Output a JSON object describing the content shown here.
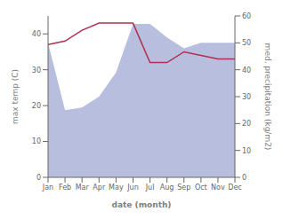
{
  "chart_data": {
    "type": "line",
    "categories": [
      "Jan",
      "Feb",
      "Mar",
      "Apr",
      "May",
      "Jun",
      "Jul",
      "Aug",
      "Sep",
      "Oct",
      "Nov",
      "Dec"
    ],
    "xlabel": "date (month)",
    "ylabel": "max temp (C)",
    "y2label": "med. precipitation (kg/m2)",
    "ylim": [
      0,
      45
    ],
    "yticks": [
      0,
      10,
      20,
      30,
      40
    ],
    "y2lim": [
      0,
      60
    ],
    "y2ticks": [
      0,
      10,
      20,
      30,
      40,
      50,
      60
    ],
    "grid": false,
    "series": [
      {
        "type": "area",
        "axis": "y2",
        "color": "#b8bede",
        "values": [
          50,
          25,
          26,
          30,
          39,
          57,
          57,
          52,
          48,
          50,
          50,
          50
        ]
      },
      {
        "type": "line",
        "color": "#b03050",
        "values": [
          37,
          38,
          41,
          43,
          43,
          43,
          32,
          32,
          35,
          34,
          33,
          33
        ]
      }
    ]
  }
}
